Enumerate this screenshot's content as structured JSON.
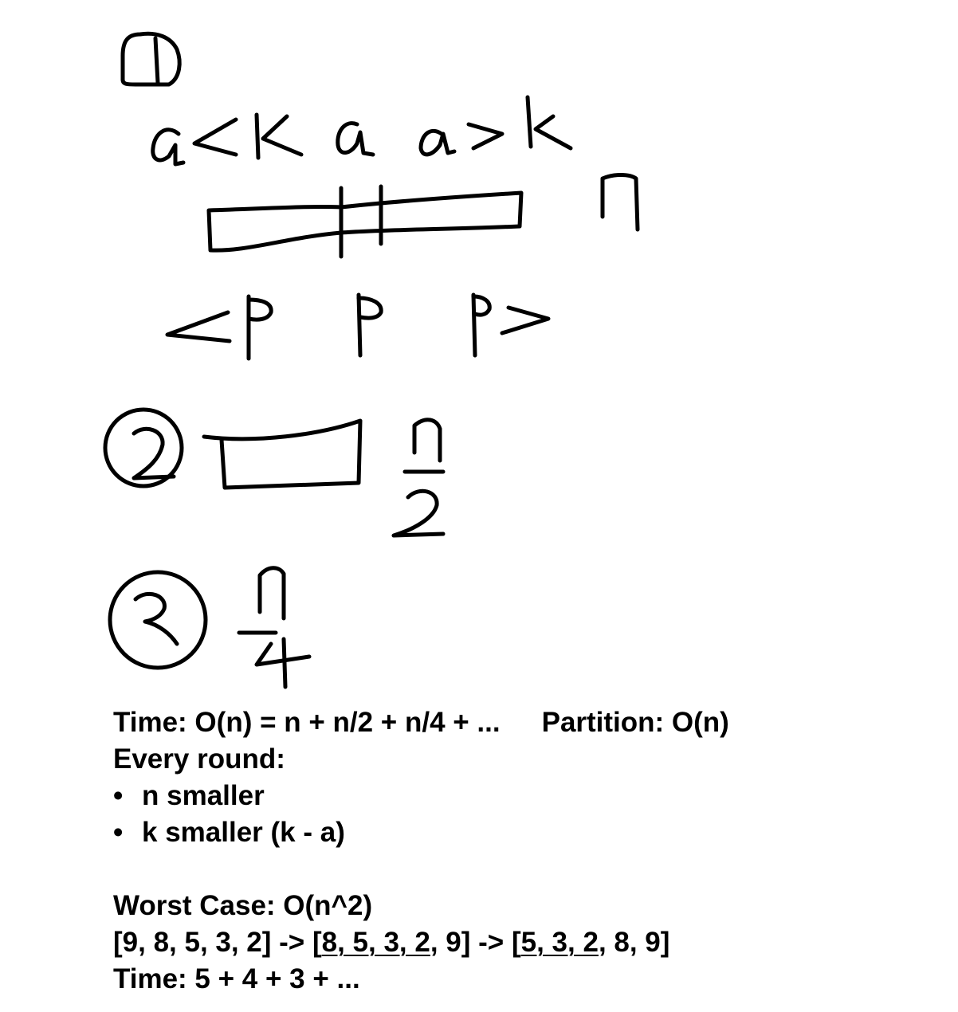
{
  "handwriting": {
    "label_1": "1",
    "expr_a_less_k": "a<k",
    "expr_a": "a",
    "expr_a_greater_k": "a>k",
    "label_n": "n",
    "expr_less_p": "<p",
    "expr_p": "p",
    "expr_p_greater": "p>",
    "label_2": "2",
    "frac_n_over_2": "n/2",
    "label_3": "3",
    "frac_n_over_4": "n/4"
  },
  "notes": {
    "time_line": "Time: O(n) = n + n/2 + n/4 + ...",
    "partition_line": "Partition: O(n)",
    "every_round": "Every round:",
    "bullet_symbol": "•",
    "bullets": [
      "n smaller",
      "k smaller (k - a)"
    ],
    "worst_case": "Worst Case: O(n^2)",
    "example": {
      "open1": "[9, 8, 5, 3, 2] -> [",
      "underline1": "8, 5, 3, 2",
      "mid": ", 9] -> [",
      "underline2": "5, 3, 2",
      "close": ", 8, 9]"
    },
    "time_sum": "Time: 5 + 4 + 3 + ..."
  }
}
